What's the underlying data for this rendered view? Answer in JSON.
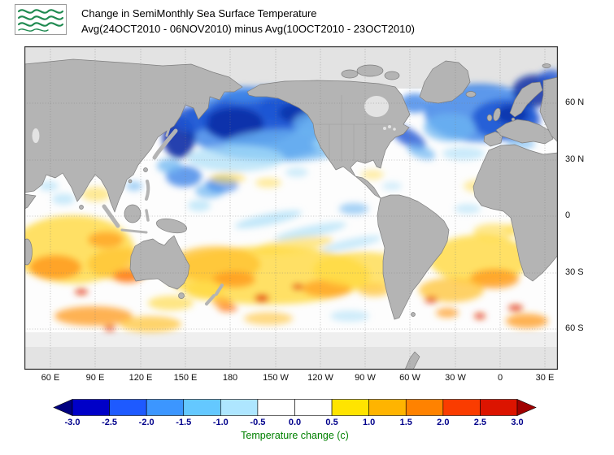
{
  "header": {
    "title_line1": "Change in SemiMonthly Sea Surface Temperature",
    "title_line2": "Avg(24OCT2010 - 06NOV2010) minus Avg(10OCT2010 - 23OCT2010)",
    "logo": "agency-wave-logo"
  },
  "map": {
    "lat_labels": [
      "60 N",
      "30 N",
      "0",
      "30 S",
      "60 S"
    ],
    "lon_labels": [
      "60 E",
      "90 E",
      "120 E",
      "150 E",
      "180",
      "150 W",
      "120 W",
      "90 W",
      "60 W",
      "30 W",
      "0",
      "30 E"
    ],
    "land_color": "#b4b4b4",
    "ocean_color": "#fdfdfd",
    "no_data_color": "#e3e3e3",
    "anomaly_field": {
      "units": "deg C change",
      "blobs": [
        [
          295,
          95,
          100,
          45,
          0,
          "#3f86e8",
          0.85
        ],
        [
          280,
          90,
          62,
          30,
          0,
          "#1e56d4",
          0.9
        ],
        [
          258,
          95,
          36,
          20,
          0,
          "#0a2fa6",
          0.9
        ],
        [
          320,
          75,
          32,
          16,
          -10,
          "#1e56d4",
          0.85
        ],
        [
          333,
          82,
          20,
          12,
          0,
          "#0a2fa6",
          0.8
        ],
        [
          190,
          112,
          20,
          26,
          0,
          "#0a2fa6",
          0.9
        ],
        [
          205,
          90,
          22,
          16,
          0,
          "#1e56d4",
          0.85
        ],
        [
          270,
          60,
          28,
          10,
          0,
          "#3f86e8",
          0.85
        ],
        [
          320,
          122,
          75,
          20,
          0,
          "#6cb5f2",
          0.75
        ],
        [
          260,
          138,
          60,
          16,
          0,
          "#a9def8",
          0.7
        ],
        [
          352,
          95,
          22,
          14,
          0,
          "#6cb5f2",
          0.75
        ],
        [
          370,
          120,
          16,
          9,
          0,
          "#a9def8",
          0.6
        ],
        [
          196,
          160,
          22,
          13,
          0,
          "#3f86e8",
          0.8
        ],
        [
          178,
          147,
          15,
          9,
          0,
          "#6cb5f2",
          0.75
        ],
        [
          228,
          178,
          18,
          9,
          0,
          "#6cb5f2",
          0.7
        ],
        [
          243,
          170,
          20,
          10,
          0,
          "#3f86e8",
          0.7
        ],
        [
          215,
          196,
          14,
          7,
          0,
          "#a9def8",
          0.65
        ],
        [
          250,
          162,
          22,
          7,
          0,
          "#ffd940",
          0.55
        ],
        [
          300,
          168,
          16,
          6,
          0,
          "#ffd940",
          0.5
        ],
        [
          335,
          155,
          14,
          6,
          0,
          "#a9def8",
          0.55
        ],
        [
          300,
          213,
          42,
          7,
          -12,
          "#a9def8",
          0.7
        ],
        [
          352,
          228,
          45,
          7,
          -12,
          "#a9def8",
          0.65
        ],
        [
          402,
          243,
          38,
          6,
          -12,
          "#a9def8",
          0.6
        ],
        [
          330,
          245,
          50,
          9,
          -8,
          "#ffd940",
          0.6
        ],
        [
          405,
          200,
          18,
          7,
          0,
          "#6cb5f2",
          0.6
        ],
        [
          300,
          282,
          125,
          36,
          0,
          "#ffd940",
          0.8
        ],
        [
          235,
          268,
          55,
          22,
          0,
          "#ffc231",
          0.8
        ],
        [
          258,
          287,
          26,
          10,
          0,
          "#ff9a1c",
          0.8
        ],
        [
          372,
          298,
          30,
          11,
          0,
          "#ff9a1c",
          0.7
        ],
        [
          415,
          275,
          60,
          22,
          0,
          "#ffd940",
          0.75
        ],
        [
          292,
          310,
          9,
          5,
          0,
          "#e33a0e",
          0.85
        ],
        [
          336,
          296,
          7,
          4,
          0,
          "#e33a0e",
          0.8
        ],
        [
          430,
          300,
          20,
          8,
          0,
          "#ffc231",
          0.7
        ],
        [
          400,
          332,
          24,
          7,
          0,
          "#a9def8",
          0.55
        ],
        [
          300,
          335,
          30,
          8,
          0,
          "#ffc231",
          0.6
        ],
        [
          250,
          322,
          12,
          5,
          0,
          "#ff7012",
          0.7
        ],
        [
          222,
          300,
          24,
          12,
          0,
          "#ffd940",
          0.7
        ],
        [
          243,
          315,
          12,
          6,
          0,
          "#ff9a1c",
          0.7
        ],
        [
          60,
          250,
          75,
          42,
          0,
          "#ffd940",
          0.8
        ],
        [
          38,
          272,
          32,
          15,
          0,
          "#ff9a1c",
          0.85
        ],
        [
          100,
          238,
          22,
          10,
          0,
          "#ff9a1c",
          0.7
        ],
        [
          120,
          268,
          42,
          20,
          0,
          "#ffc231",
          0.75
        ],
        [
          127,
          283,
          18,
          8,
          0,
          "#ff7012",
          0.75
        ],
        [
          88,
          182,
          18,
          9,
          0,
          "#ffd940",
          0.55
        ],
        [
          48,
          188,
          14,
          7,
          0,
          "#a9def8",
          0.6
        ],
        [
          70,
          302,
          8,
          4,
          0,
          "#e33a0e",
          0.8
        ],
        [
          85,
          332,
          48,
          12,
          0,
          "#ff9a1c",
          0.75
        ],
        [
          155,
          342,
          38,
          10,
          0,
          "#ffc231",
          0.7
        ],
        [
          105,
          347,
          7,
          3.5,
          0,
          "#e33a0e",
          0.8
        ],
        [
          180,
          316,
          28,
          9,
          0,
          "#ffd940",
          0.65
        ],
        [
          560,
          82,
          68,
          36,
          0,
          "#3f86e8",
          0.85
        ],
        [
          592,
          90,
          42,
          25,
          0,
          "#1e56d4",
          0.85
        ],
        [
          628,
          55,
          28,
          20,
          0,
          "#0a2fa6",
          0.85
        ],
        [
          600,
          84,
          20,
          12,
          0,
          "#0a2fa6",
          0.8
        ],
        [
          648,
          40,
          16,
          11,
          0,
          "#1e56d4",
          0.8
        ],
        [
          523,
          100,
          32,
          17,
          0,
          "#6cb5f2",
          0.75
        ],
        [
          480,
          70,
          18,
          12,
          0,
          "#3f86e8",
          0.8
        ],
        [
          472,
          112,
          24,
          10,
          30,
          "#1e56d4",
          0.8
        ],
        [
          488,
          130,
          18,
          8,
          20,
          "#6cb5f2",
          0.7
        ],
        [
          540,
          132,
          26,
          8,
          0,
          "#a9def8",
          0.6
        ],
        [
          610,
          120,
          18,
          7,
          0,
          "#6cb5f2",
          0.6
        ],
        [
          560,
          172,
          20,
          8,
          0,
          "#ffd940",
          0.5
        ],
        [
          545,
          200,
          16,
          6,
          0,
          "#a9def8",
          0.55
        ],
        [
          578,
          228,
          26,
          10,
          0,
          "#ffd940",
          0.6
        ],
        [
          560,
          262,
          62,
          30,
          0,
          "#ffd940",
          0.8
        ],
        [
          578,
          286,
          30,
          12,
          0,
          "#ff9a1c",
          0.8
        ],
        [
          525,
          300,
          40,
          15,
          0,
          "#ffc231",
          0.75
        ],
        [
          604,
          322,
          9,
          4,
          0,
          "#e33a0e",
          0.85
        ],
        [
          618,
          338,
          26,
          9,
          0,
          "#ff9a1c",
          0.75
        ],
        [
          560,
          332,
          7,
          4,
          0,
          "#e33a0e",
          0.8
        ],
        [
          428,
          158,
          14,
          6,
          0,
          "#ffd940",
          0.45
        ],
        [
          452,
          172,
          12,
          5,
          0,
          "#a9def8",
          0.5
        ],
        [
          30,
          172,
          12,
          6,
          0,
          "#a9def8",
          0.6
        ],
        [
          135,
          172,
          10,
          6,
          0,
          "#6cb5f2",
          0.6
        ],
        [
          610,
          225,
          20,
          8,
          0,
          "#ffd940",
          0.5
        ],
        [
          500,
          312,
          8,
          4,
          0,
          "#e33a0e",
          0.8
        ],
        [
          520,
          328,
          14,
          6,
          0,
          "#ff9a1c",
          0.7
        ]
      ]
    }
  },
  "colorbar": {
    "tick_labels": [
      "-3.0",
      "-2.5",
      "-2.0",
      "-1.5",
      "-1.0",
      "-0.5",
      "0.0",
      "0.5",
      "1.0",
      "1.5",
      "2.0",
      "2.5",
      "3.0"
    ],
    "tick_values": [
      -3.0,
      -2.5,
      -2.0,
      -1.5,
      -1.0,
      -0.5,
      0.0,
      0.5,
      1.0,
      1.5,
      2.0,
      2.5,
      3.0
    ],
    "colors": [
      "#000080",
      "#0000c8",
      "#1e5aff",
      "#3c96ff",
      "#64c8ff",
      "#aee6ff",
      "#ffffff",
      "#ffffff",
      "#ffe400",
      "#ffb400",
      "#ff8200",
      "#fa3c00",
      "#dc1400",
      "#a00000"
    ],
    "caption": "Temperature change  (c)"
  }
}
